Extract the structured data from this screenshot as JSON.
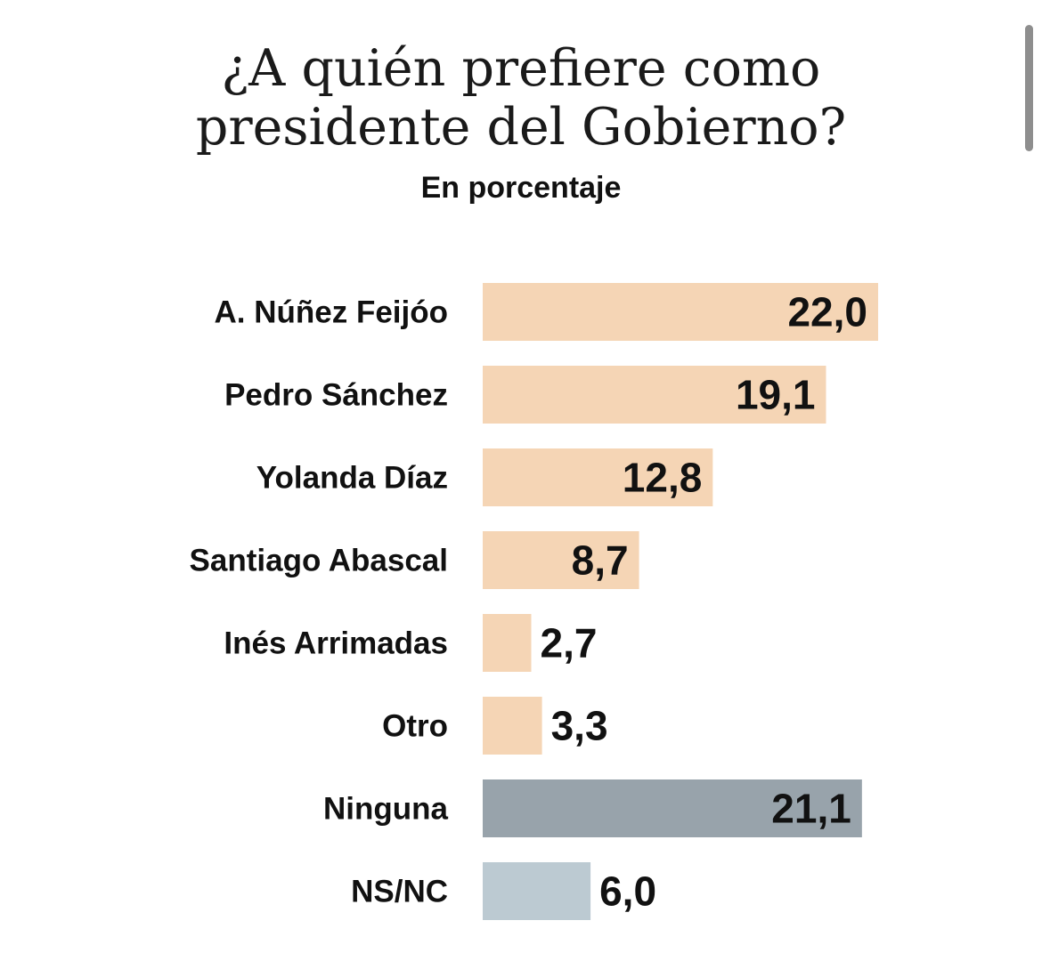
{
  "header": {
    "title_line1": "¿A quién prefiere como",
    "title_line2": "presidente del Gobierno?",
    "subtitle": "En porcentaje"
  },
  "chart_data": {
    "type": "bar",
    "orientation": "horizontal",
    "title": "¿A quién prefiere como presidente del Gobierno?",
    "subtitle": "En porcentaje",
    "categories": [
      "A. Núñez Feijóo",
      "Pedro Sánchez",
      "Yolanda Díaz",
      "Santiago Abascal",
      "Inés Arrimadas",
      "Otro",
      "Ninguna",
      "NS/NC"
    ],
    "values": [
      22.0,
      19.1,
      12.8,
      8.7,
      2.7,
      3.3,
      21.1,
      6.0
    ],
    "value_labels": [
      "22,0",
      "19,1",
      "12,8",
      "8,7",
      "2,7",
      "3,3",
      "21,1",
      "6,0"
    ],
    "bar_colors": [
      "#f5d5b5",
      "#f5d5b5",
      "#f5d5b5",
      "#f5d5b5",
      "#f5d5b5",
      "#f5d5b5",
      "#98a3ab",
      "#bccad2"
    ],
    "xlim": [
      0,
      22.0
    ],
    "grid": false,
    "legend": "none"
  }
}
